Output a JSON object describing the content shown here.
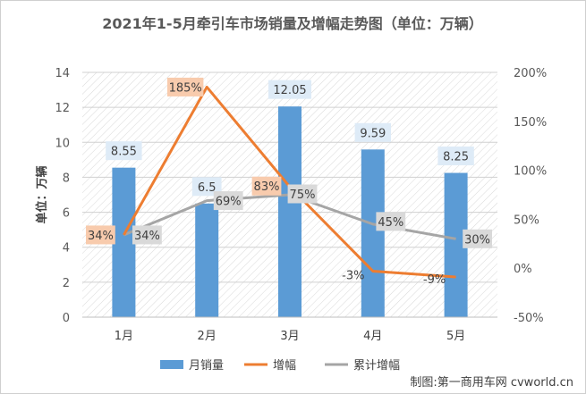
{
  "chart_data": {
    "type": "bar",
    "title": "2021年1-5月牵引车市场销量及增幅走势图（单位：万辆）",
    "ylabel": "单位：万辆",
    "categories": [
      "1月",
      "2月",
      "3月",
      "4月",
      "5月"
    ],
    "y_left": {
      "range": [
        0,
        14
      ],
      "ticks": [
        "0",
        "2",
        "4",
        "6",
        "8",
        "10",
        "12",
        "14"
      ]
    },
    "y_right": {
      "range": [
        -50,
        200
      ],
      "unit": "%",
      "ticks": [
        "-50%",
        "0%",
        "50%",
        "100%",
        "150%",
        "200%"
      ]
    },
    "grid": true,
    "legend_position": "bottom",
    "series": [
      {
        "name": "月销量",
        "kind": "bar",
        "axis": "left",
        "color": "#5b9bd5",
        "values": [
          8.55,
          6.5,
          12.05,
          9.59,
          8.25
        ],
        "labels": [
          "8.55",
          "6.5",
          "12.05",
          "9.59",
          "8.25"
        ]
      },
      {
        "name": "增幅",
        "kind": "line",
        "axis": "right",
        "color": "#ed7d31",
        "values": [
          34,
          185,
          83,
          -3,
          -9
        ],
        "labels": [
          "34%",
          "185%",
          "83%",
          "-3%",
          "-9%"
        ]
      },
      {
        "name": "累计增幅",
        "kind": "line",
        "axis": "right",
        "color": "#a5a5a5",
        "values": [
          34,
          69,
          75,
          45,
          30
        ],
        "labels": [
          "34%",
          "69%",
          "75%",
          "45%",
          "30%"
        ]
      }
    ]
  },
  "source_note": "制图:第一商用车网 cvworld.cn"
}
